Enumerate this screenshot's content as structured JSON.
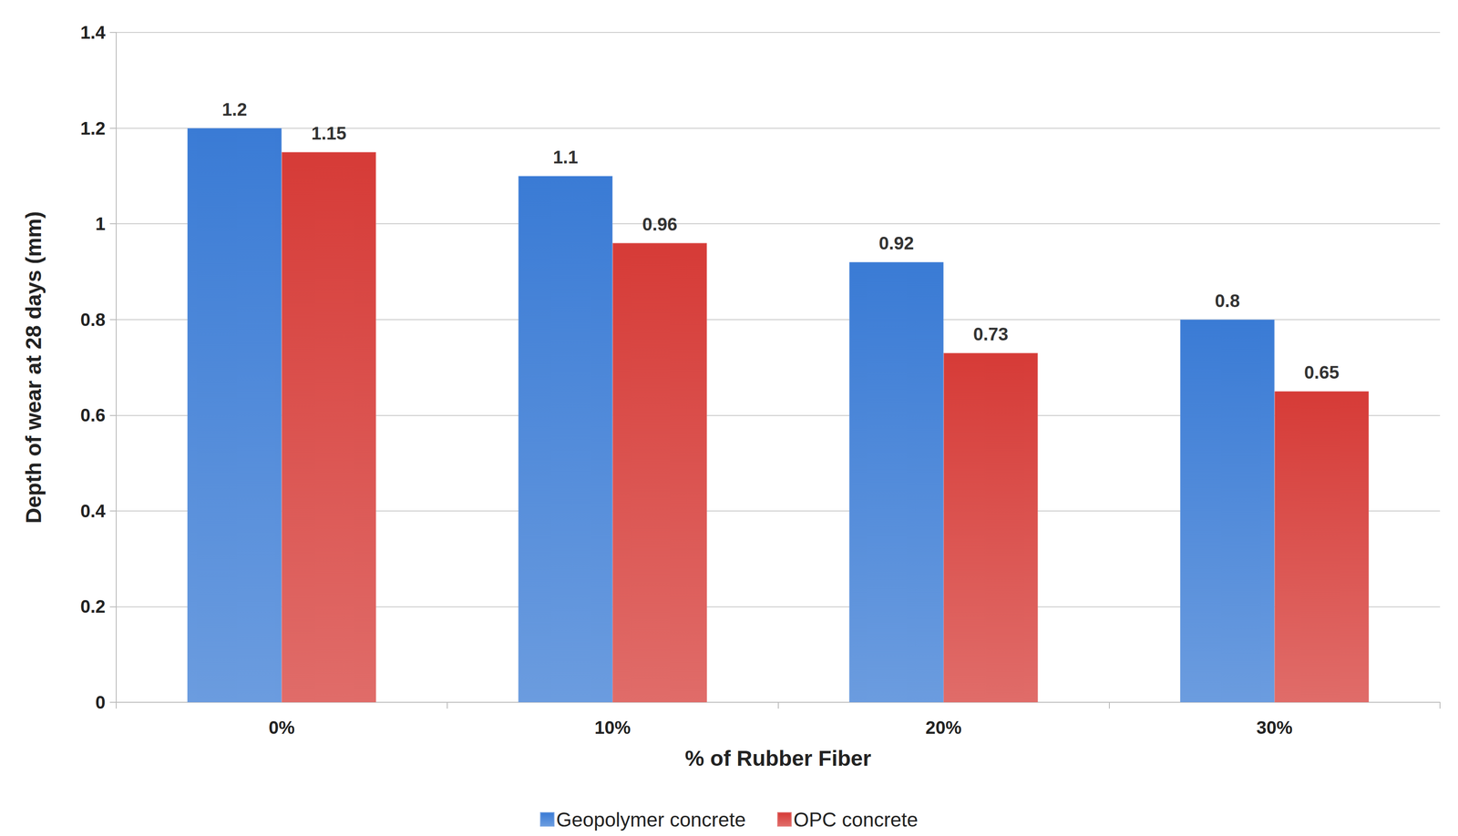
{
  "chart_data": {
    "type": "bar",
    "categories": [
      "0%",
      "10%",
      "20%",
      "30%"
    ],
    "x_label": "% of Rubber Fiber",
    "y_label": "Depth of wear at 28 days (mm)",
    "series": [
      {
        "name": "Geopolymer concrete",
        "color": "#3a7bd5",
        "values": [
          1.2,
          1.1,
          0.92,
          0.8
        ]
      },
      {
        "name": "OPC concrete",
        "color": "#d63b37",
        "values": [
          1.15,
          0.96,
          0.73,
          0.65
        ]
      }
    ],
    "ylim": [
      0,
      1.4
    ],
    "yticks": [
      0,
      0.2,
      0.4,
      0.6,
      0.8,
      1,
      1.2,
      1.4
    ],
    "grid": true,
    "legend": "bottom",
    "data_labels": true
  }
}
